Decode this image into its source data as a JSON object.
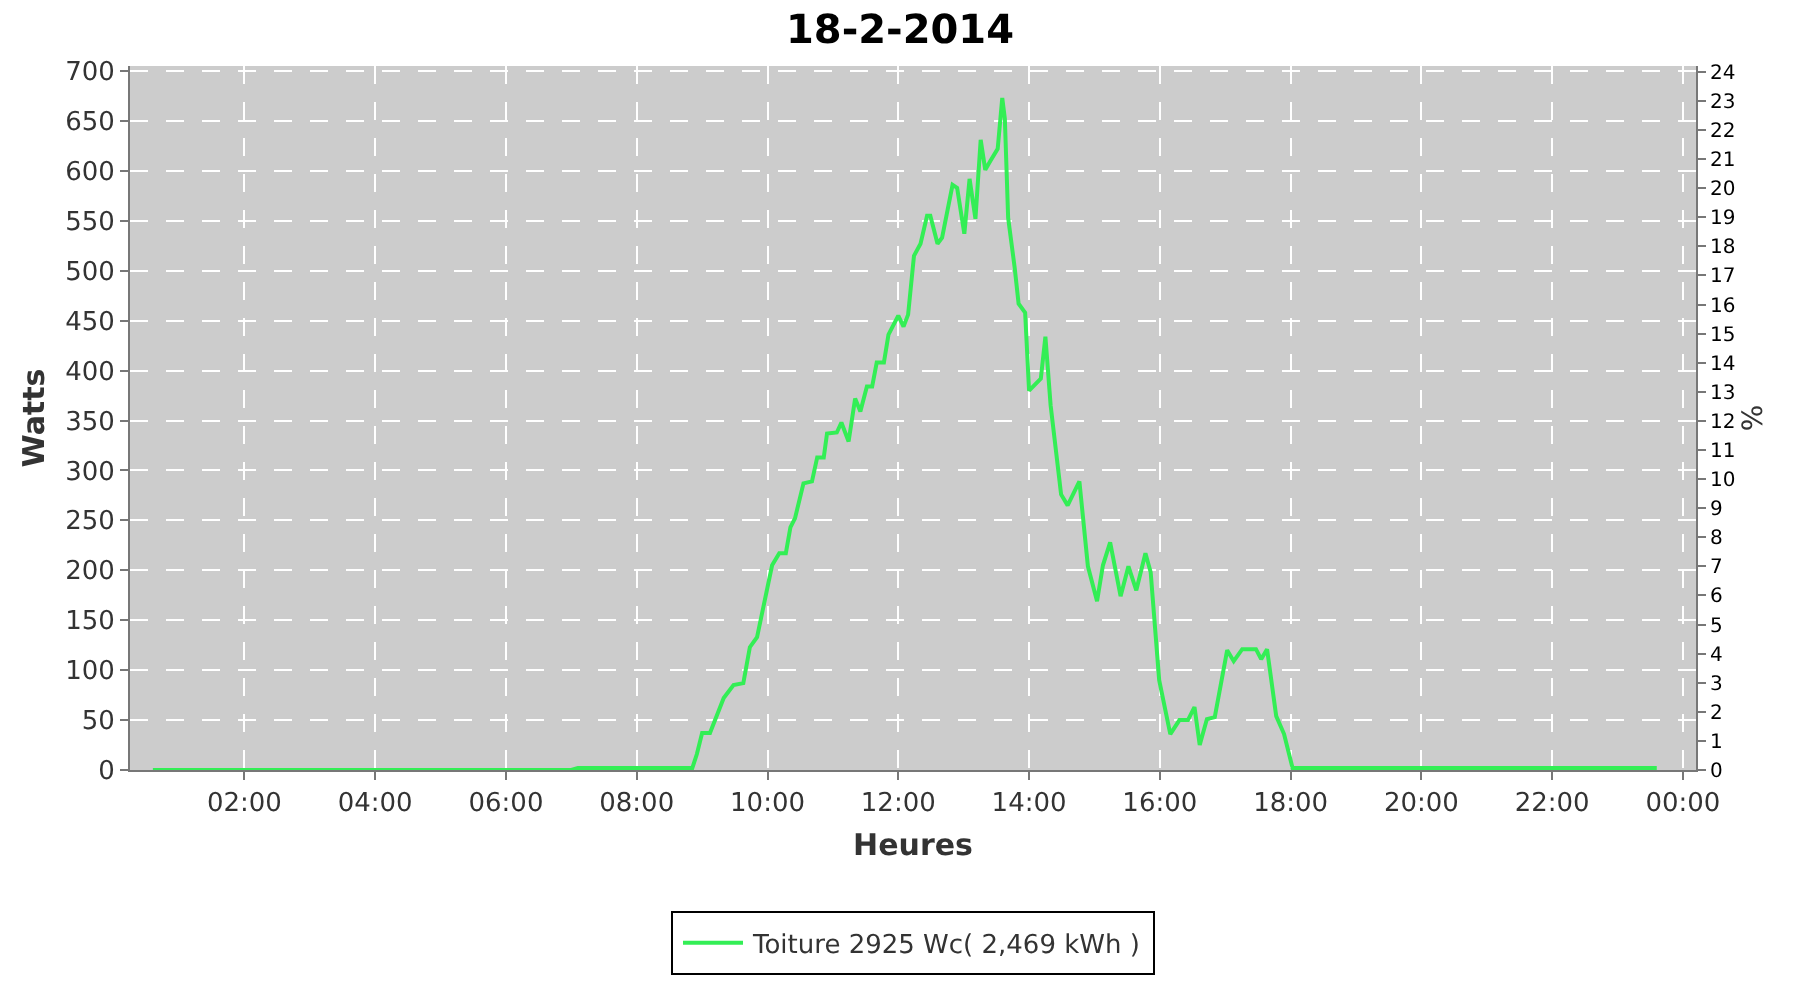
{
  "chart_data": {
    "type": "line",
    "title": "18-2-2014",
    "xlabel": "Heures",
    "ylabel": "Watts",
    "y2label": "%",
    "xlim": [
      0.25,
      24.2
    ],
    "ylim": [
      0,
      705
    ],
    "y2lim": [
      0,
      24.2
    ],
    "xticks": [
      {
        "value": 2,
        "label": "02:00"
      },
      {
        "value": 4,
        "label": "04:00"
      },
      {
        "value": 6,
        "label": "06:00"
      },
      {
        "value": 8,
        "label": "08:00"
      },
      {
        "value": 10,
        "label": "10:00"
      },
      {
        "value": 12,
        "label": "12:00"
      },
      {
        "value": 14,
        "label": "14:00"
      },
      {
        "value": 16,
        "label": "16:00"
      },
      {
        "value": 18,
        "label": "18:00"
      },
      {
        "value": 20,
        "label": "20:00"
      },
      {
        "value": 22,
        "label": "22:00"
      },
      {
        "value": 24,
        "label": "00:00"
      }
    ],
    "yticks": [
      0,
      50,
      100,
      150,
      200,
      250,
      300,
      350,
      400,
      450,
      500,
      550,
      600,
      650,
      700
    ],
    "y2ticks": [
      0,
      1,
      2,
      3,
      4,
      5,
      6,
      7,
      8,
      9,
      10,
      11,
      12,
      13,
      14,
      15,
      16,
      17,
      18,
      19,
      20,
      21,
      22,
      23,
      24
    ],
    "grid": true,
    "legend": "bottom",
    "marker": "none",
    "line_style": "solid",
    "series": [
      {
        "name": "Toiture 2925 Wc( 2,469 kWh )",
        "color": "#33ee55",
        "x": [
          0.6,
          7.0,
          7.1,
          8.85,
          8.92,
          9.0,
          9.12,
          9.33,
          9.48,
          9.63,
          9.73,
          9.84,
          10.07,
          10.18,
          10.28,
          10.35,
          10.42,
          10.55,
          10.68,
          10.76,
          10.86,
          10.91,
          11.06,
          11.13,
          11.24,
          11.34,
          11.42,
          11.52,
          11.6,
          11.67,
          11.78,
          11.85,
          12.0,
          12.08,
          12.15,
          12.24,
          12.34,
          12.44,
          12.49,
          12.6,
          12.67,
          12.83,
          12.9,
          13.01,
          13.09,
          13.18,
          13.26,
          13.33,
          13.41,
          13.52,
          13.59,
          13.63,
          13.68,
          13.78,
          13.84,
          13.94,
          14.0,
          14.18,
          14.25,
          14.33,
          14.49,
          14.59,
          14.77,
          14.9,
          15.04,
          15.13,
          15.24,
          15.4,
          15.52,
          15.64,
          15.78,
          15.86,
          15.99,
          16.16,
          16.3,
          16.43,
          16.53,
          16.61,
          16.72,
          16.84,
          17.03,
          17.13,
          17.26,
          17.47,
          17.55,
          17.64,
          17.78,
          17.9,
          18.03,
          23.6
        ],
        "values": [
          0,
          0,
          2,
          2,
          16,
          37,
          37,
          72,
          85,
          87,
          123,
          133,
          205,
          217,
          217,
          243,
          252,
          287,
          289,
          313,
          313,
          337,
          338,
          348,
          329,
          372,
          359,
          384,
          384,
          408,
          408,
          436,
          455,
          444,
          456,
          515,
          527,
          555,
          555,
          527,
          533,
          586,
          583,
          537,
          592,
          552,
          631,
          601,
          610,
          622,
          673,
          652,
          553,
          503,
          467,
          458,
          380,
          392,
          434,
          365,
          276,
          265,
          289,
          204,
          169,
          205,
          228,
          174,
          204,
          180,
          217,
          198,
          90,
          36,
          50,
          50,
          63,
          25,
          51,
          53,
          120,
          109,
          121,
          121,
          111,
          121,
          54,
          36,
          2,
          2
        ]
      }
    ]
  }
}
